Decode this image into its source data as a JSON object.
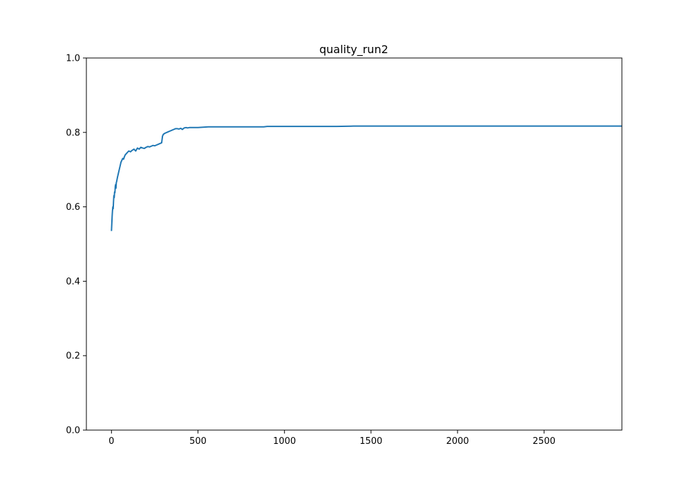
{
  "chart_data": {
    "type": "line",
    "title": "quality_run2",
    "xlabel": "",
    "ylabel": "",
    "xlim": [
      -145,
      2950
    ],
    "ylim": [
      0.0,
      1.0
    ],
    "grid": false,
    "x_ticks": [
      0,
      500,
      1000,
      1500,
      2000,
      2500
    ],
    "x_tick_labels": [
      "0",
      "500",
      "1000",
      "1500",
      "2000",
      "2500"
    ],
    "y_ticks": [
      0.0,
      0.2,
      0.4,
      0.6,
      0.8,
      1.0
    ],
    "y_tick_labels": [
      "0.0",
      "0.2",
      "0.4",
      "0.6",
      "0.8",
      "1.0"
    ],
    "series": [
      {
        "color": "#1f77b4",
        "x": [
          0,
          2,
          4,
          6,
          8,
          10,
          12,
          14,
          16,
          18,
          20,
          22,
          24,
          26,
          28,
          30,
          35,
          40,
          45,
          50,
          55,
          60,
          65,
          70,
          75,
          80,
          90,
          100,
          110,
          120,
          130,
          140,
          150,
          160,
          170,
          180,
          190,
          200,
          210,
          220,
          230,
          240,
          250,
          260,
          270,
          280,
          290,
          295,
          300,
          310,
          320,
          330,
          340,
          350,
          360,
          370,
          380,
          390,
          400,
          410,
          420,
          430,
          440,
          450,
          470,
          500,
          530,
          560,
          600,
          650,
          700,
          750,
          800,
          850,
          880,
          900,
          950,
          1000,
          1100,
          1200,
          1250,
          1300,
          1400,
          1500,
          1600,
          1700,
          1800,
          1900,
          2000,
          2200,
          2400,
          2600,
          2800,
          2950
        ],
        "y": [
          0.535,
          0.555,
          0.575,
          0.59,
          0.6,
          0.595,
          0.615,
          0.63,
          0.625,
          0.64,
          0.638,
          0.655,
          0.66,
          0.65,
          0.665,
          0.668,
          0.68,
          0.69,
          0.7,
          0.71,
          0.72,
          0.725,
          0.73,
          0.728,
          0.735,
          0.74,
          0.745,
          0.75,
          0.748,
          0.752,
          0.755,
          0.75,
          0.758,
          0.755,
          0.76,
          0.758,
          0.757,
          0.76,
          0.762,
          0.761,
          0.763,
          0.765,
          0.764,
          0.766,
          0.768,
          0.77,
          0.772,
          0.79,
          0.795,
          0.798,
          0.8,
          0.802,
          0.804,
          0.806,
          0.808,
          0.81,
          0.81,
          0.809,
          0.811,
          0.808,
          0.812,
          0.813,
          0.812,
          0.813,
          0.813,
          0.813,
          0.814,
          0.815,
          0.815,
          0.815,
          0.815,
          0.815,
          0.815,
          0.815,
          0.815,
          0.816,
          0.816,
          0.816,
          0.816,
          0.816,
          0.816,
          0.816,
          0.817,
          0.817,
          0.817,
          0.817,
          0.817,
          0.817,
          0.817,
          0.817,
          0.817,
          0.817,
          0.817,
          0.817
        ]
      }
    ]
  }
}
